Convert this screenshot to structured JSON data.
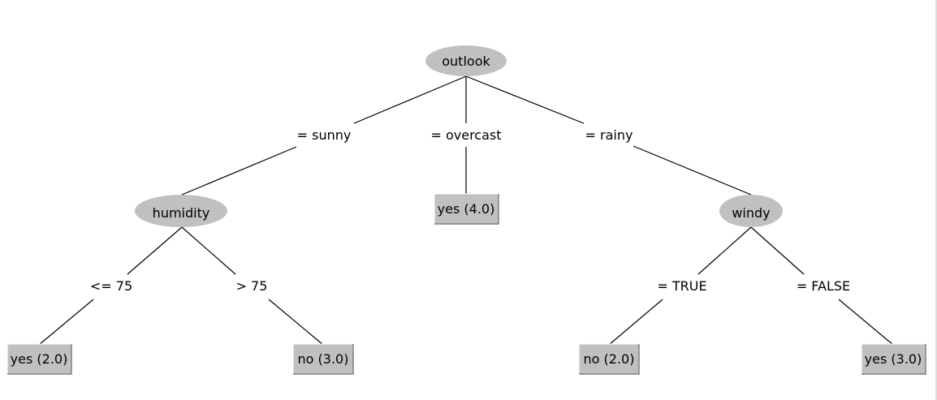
{
  "tree": {
    "colors": {
      "node_fill": "#c0c0c0",
      "leaf_fill": "#c0c0c0",
      "line": "#000000",
      "leaf_highlight": "#ffffff",
      "leaf_shadow": "#808080"
    },
    "nodes": {
      "outlook": {
        "label": "outlook"
      },
      "humidity": {
        "label": "humidity"
      },
      "windy": {
        "label": "windy"
      }
    },
    "leaves": {
      "sunny_low": {
        "label": "yes (2.0)"
      },
      "sunny_high": {
        "label": "no (3.0)"
      },
      "overcast": {
        "label": "yes (4.0)"
      },
      "rainy_true": {
        "label": "no (2.0)"
      },
      "rainy_false": {
        "label": "yes (3.0)"
      }
    },
    "edges": {
      "sunny": "= sunny",
      "overcast": "= overcast",
      "rainy": "= rainy",
      "le75": "<= 75",
      "gt75": "> 75",
      "true": "= TRUE",
      "false": "= FALSE"
    }
  }
}
